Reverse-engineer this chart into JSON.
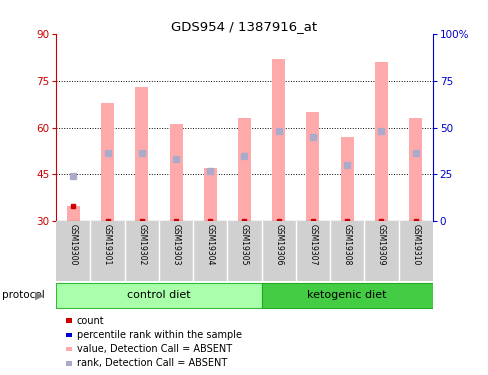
{
  "title": "GDS954 / 1387916_at",
  "samples": [
    "GSM19300",
    "GSM19301",
    "GSM19302",
    "GSM19303",
    "GSM19304",
    "GSM19305",
    "GSM19306",
    "GSM19307",
    "GSM19308",
    "GSM19309",
    "GSM19310"
  ],
  "pink_bar_tops": [
    35,
    68,
    73,
    61,
    47,
    63,
    82,
    65,
    57,
    81,
    63
  ],
  "blue_dot_y": [
    44.5,
    52,
    52,
    50,
    46,
    51,
    59,
    57,
    48,
    59,
    52
  ],
  "red_marker_y": [
    35,
    30,
    30,
    30,
    30,
    30,
    30,
    30,
    30,
    30,
    30
  ],
  "bar_bottom": 30,
  "ylim_left": [
    30,
    90
  ],
  "yticks_left": [
    30,
    45,
    60,
    75,
    90
  ],
  "yticks_right": [
    0,
    25,
    50,
    75,
    100
  ],
  "ytick_labels_right": [
    "0",
    "25",
    "50",
    "75",
    "100%"
  ],
  "left_axis_color": "#cc0000",
  "right_axis_color": "#0000cc",
  "pink_bar_color": "#ffaaaa",
  "blue_dot_color": "#aaaacc",
  "red_dot_color": "#cc0000",
  "n_control": 6,
  "n_keto": 5,
  "control_label": "control diet",
  "ketogenic_label": "ketogenic diet",
  "protocol_label": "protocol",
  "bg_header": "#d0d0d0",
  "bg_control": "#aaffaa",
  "bg_ketogenic": "#44cc44",
  "legend_items": [
    {
      "color": "#cc0000",
      "label": "count",
      "size": 5
    },
    {
      "color": "#0000cc",
      "label": "percentile rank within the sample",
      "size": 5
    },
    {
      "color": "#ffaaaa",
      "label": "value, Detection Call = ABSENT",
      "size": 8
    },
    {
      "color": "#aaaacc",
      "label": "rank, Detection Call = ABSENT",
      "size": 8
    }
  ]
}
